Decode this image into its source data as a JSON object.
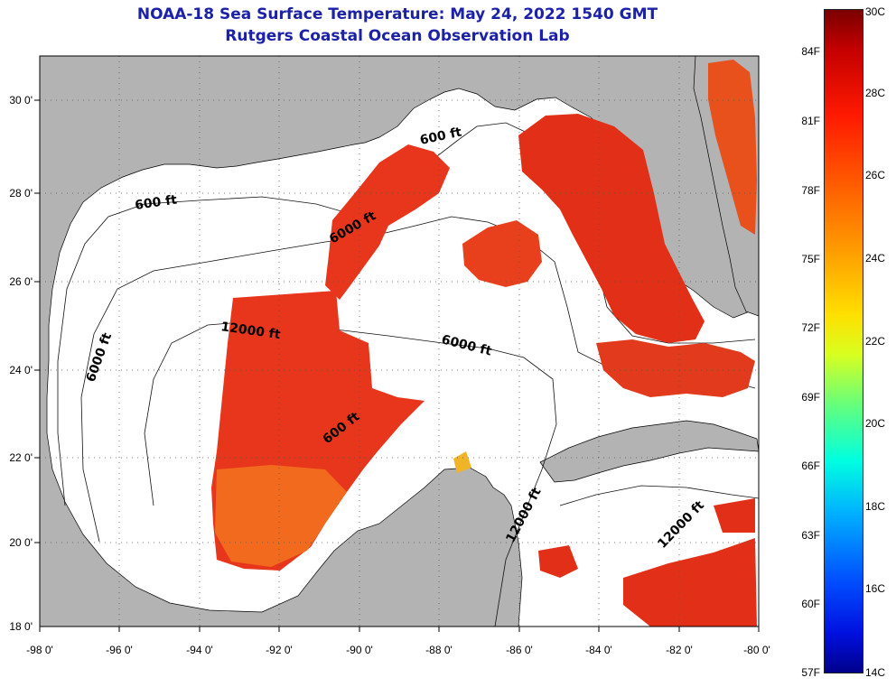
{
  "title": {
    "line1": "NOAA-18 Sea Surface Temperature:  May 24, 2022 1540 GMT",
    "line2": "Rutgers Coastal Ocean Observation Lab"
  },
  "map": {
    "latitude_labels": [
      "30 0'",
      "28 0'",
      "26 0'",
      "24 0'",
      "22 0'",
      "20 0'",
      "18 0'"
    ],
    "latitudes": [
      30,
      28,
      26,
      24,
      22,
      20,
      18
    ],
    "longitude_labels": [
      "-98 0'",
      "-96 0'",
      "-94 0'",
      "-92 0'",
      "-90 0'",
      "-88 0'",
      "-86 0'",
      "-84 0'",
      "-82 0'",
      "-80 0'"
    ],
    "longitudes": [
      -98,
      -96,
      -94,
      -92,
      -90,
      -88,
      -86,
      -84,
      -82,
      -80
    ],
    "lat_range": [
      18,
      31
    ],
    "lon_range": [
      -98,
      -80
    ],
    "contour_labels": [
      "600 ft",
      "600 ft",
      "6000 ft",
      "12000 ft",
      "6000 ft",
      "6000 ft",
      "600 ft",
      "12000 ft",
      "12000 ft"
    ]
  },
  "colorbar": {
    "fahrenheit_labels": [
      "84F",
      "81F",
      "78F",
      "75F",
      "72F",
      "69F",
      "66F",
      "63F",
      "60F",
      "57F"
    ],
    "celsius_labels": [
      "30C",
      "28C",
      "26C",
      "24C",
      "22C",
      "20C",
      "18C",
      "16C",
      "14C"
    ],
    "range_c": [
      14,
      30
    ]
  },
  "colors": {
    "title": "#1b22a8",
    "land": "#b3b3b3",
    "no_data": "#ffffff",
    "sst_warm": "#e8361c"
  }
}
